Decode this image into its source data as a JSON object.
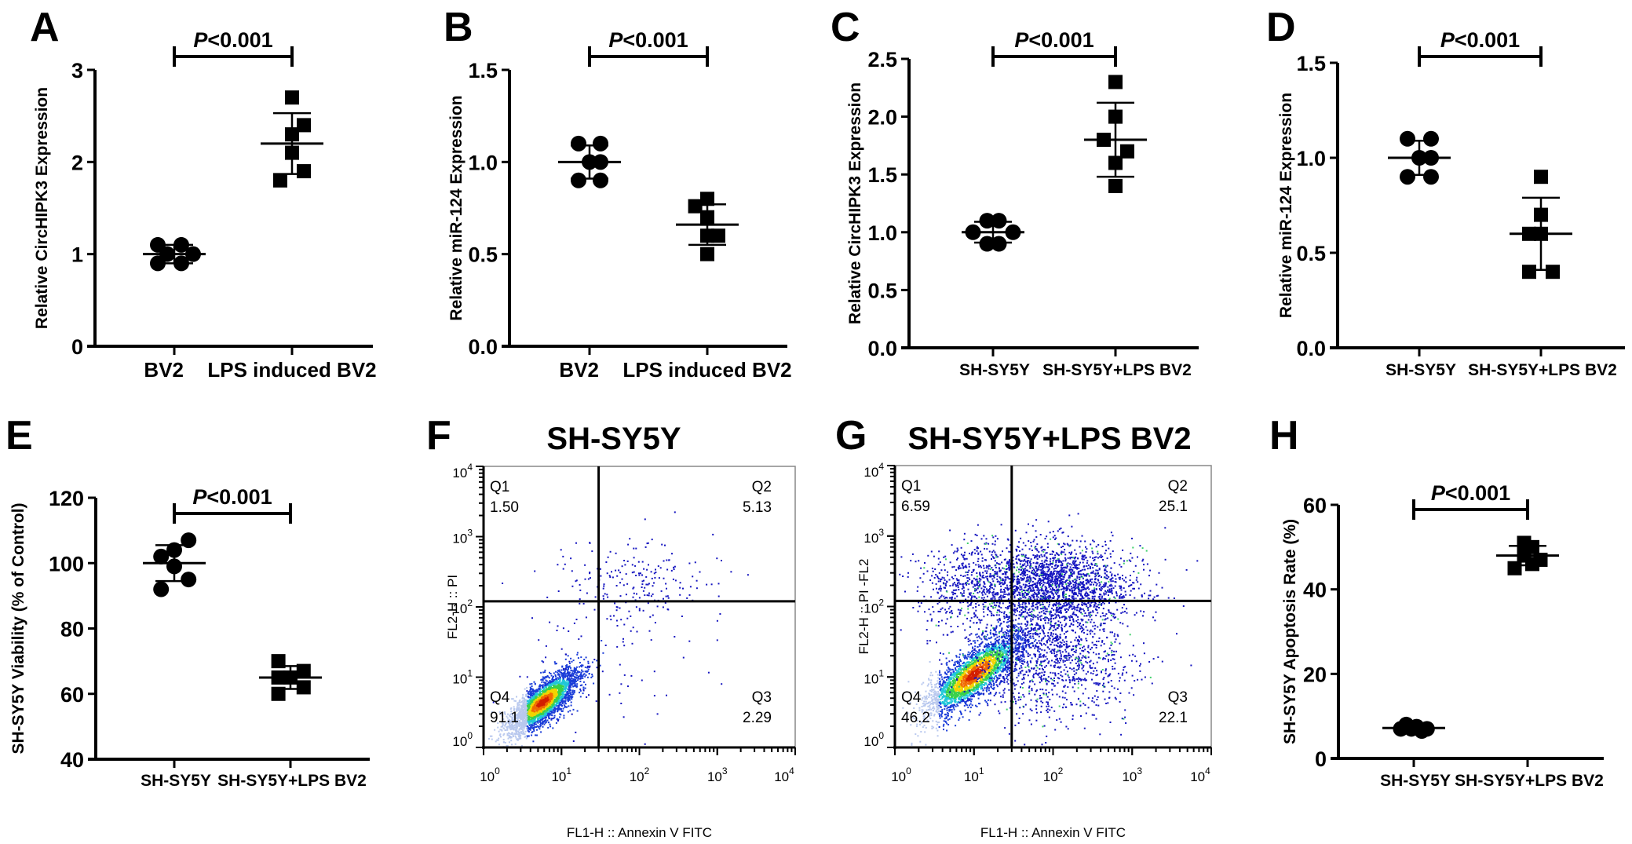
{
  "figure": {
    "colors": {
      "ink": "#000000",
      "background": "#ffffff",
      "box": "#888888"
    }
  },
  "chart_data": [
    {
      "id": "A",
      "panel_label": "A",
      "type": "scatter",
      "subtype": "dot-plot with mean and SD",
      "title": "",
      "xlabel": "",
      "ylabel": "Relative CircHIPK3 Expression",
      "ylim": [
        0,
        3
      ],
      "yticks": [
        0,
        1,
        2,
        3
      ],
      "ytick_labels": [
        "0",
        "1",
        "2",
        "3"
      ],
      "categories": [
        "BV2",
        "LPS induced BV2"
      ],
      "significance": "P<0.001",
      "series": [
        {
          "name": "BV2",
          "marker": "circle",
          "values": [
            1.1,
            1.1,
            1.0,
            1.0,
            0.9,
            0.9
          ],
          "offsets": [
            -0.7,
            0.3,
            -0.3,
            0.8,
            -0.7,
            0.3
          ],
          "mean": 1.0,
          "sd": 0.1
        },
        {
          "name": "LPS induced BV2",
          "marker": "square",
          "values": [
            2.7,
            2.4,
            2.3,
            2.1,
            1.9,
            1.8
          ],
          "offsets": [
            0,
            0.5,
            0,
            0,
            0.5,
            -0.5
          ],
          "mean": 2.2,
          "sd": 0.33
        }
      ]
    },
    {
      "id": "B",
      "panel_label": "B",
      "type": "scatter",
      "subtype": "dot-plot with mean and SD",
      "title": "",
      "xlabel": "",
      "ylabel": "Relative miR-124 Expression",
      "ylim": [
        0,
        1.5
      ],
      "yticks": [
        0,
        0.5,
        1.0,
        1.5
      ],
      "ytick_labels": [
        "0.0",
        "0.5",
        "1.0",
        "1.5"
      ],
      "categories": [
        "BV2",
        "LPS induced BV2"
      ],
      "significance": "P<0.001",
      "series": [
        {
          "name": "BV2",
          "marker": "circle",
          "values": [
            1.1,
            1.1,
            1.0,
            1.0,
            0.9,
            0.9
          ],
          "offsets": [
            -0.5,
            0.5,
            0,
            0.5,
            -0.5,
            0.5
          ],
          "mean": 1.0,
          "sd": 0.09
        },
        {
          "name": "LPS induced BV2",
          "marker": "square",
          "values": [
            0.8,
            0.76,
            0.7,
            0.6,
            0.6,
            0.5
          ],
          "offsets": [
            0,
            -0.55,
            0,
            0,
            0.5,
            0
          ],
          "mean": 0.66,
          "sd": 0.11
        }
      ]
    },
    {
      "id": "C",
      "panel_label": "C",
      "type": "scatter",
      "subtype": "dot-plot with mean and SD",
      "title": "",
      "xlabel": "",
      "ylabel": "Relative CircHIPK3 Expression",
      "ylim": [
        0,
        2.5
      ],
      "yticks": [
        0,
        0.5,
        1.0,
        1.5,
        2.0,
        2.5
      ],
      "ytick_labels": [
        "0.0",
        "0.5",
        "1.0",
        "1.5",
        "2.0",
        "2.5"
      ],
      "categories": [
        "SH-SY5Y",
        "SH-SY5Y+LPS BV2"
      ],
      "significance": "P<0.001",
      "series": [
        {
          "name": "SH-SY5Y",
          "marker": "circle",
          "values": [
            1.1,
            1.1,
            1.0,
            1.0,
            0.9,
            0.9
          ],
          "offsets": [
            -0.25,
            0.25,
            -0.85,
            0.85,
            -0.25,
            0.25
          ],
          "mean": 1.0,
          "sd": 0.09
        },
        {
          "name": "SH-SY5Y+LPS BV2",
          "marker": "square",
          "values": [
            2.3,
            2.0,
            1.8,
            1.7,
            1.6,
            1.4
          ],
          "offsets": [
            0,
            0,
            -0.5,
            0.5,
            0,
            0
          ],
          "mean": 1.8,
          "sd": 0.32
        }
      ]
    },
    {
      "id": "D",
      "panel_label": "D",
      "type": "scatter",
      "subtype": "dot-plot with mean and SD",
      "title": "",
      "xlabel": "",
      "ylabel": "Relative miR-124 Expression",
      "ylim": [
        0,
        1.5
      ],
      "yticks": [
        0,
        0.5,
        1.0,
        1.5
      ],
      "ytick_labels": [
        "0.0",
        "0.5",
        "1.0",
        "1.5"
      ],
      "categories": [
        "SH-SY5Y",
        "SH-SY5Y+LPS BV2"
      ],
      "significance": "P<0.001",
      "series": [
        {
          "name": "SH-SY5Y",
          "marker": "circle",
          "values": [
            1.1,
            1.1,
            1.0,
            1.0,
            0.9,
            0.9
          ],
          "offsets": [
            -0.5,
            0.5,
            0,
            0.5,
            -0.5,
            0.5
          ],
          "mean": 1.0,
          "sd": 0.09
        },
        {
          "name": "SH-SY5Y+LPS BV2",
          "marker": "square",
          "values": [
            0.9,
            0.7,
            0.6,
            0.6,
            0.4,
            0.4
          ],
          "offsets": [
            0,
            0,
            -0.5,
            0,
            -0.5,
            0.5
          ],
          "mean": 0.6,
          "sd": 0.19
        }
      ]
    },
    {
      "id": "E",
      "panel_label": "E",
      "type": "scatter",
      "subtype": "dot-plot with mean and SD",
      "title": "",
      "xlabel": "",
      "ylabel": "SH-SY5Y Viability (% of Control)",
      "ylim": [
        40,
        120
      ],
      "yticks": [
        40,
        60,
        80,
        100,
        120
      ],
      "ytick_labels": [
        "40",
        "60",
        "80",
        "100",
        "120"
      ],
      "categories": [
        "SH-SY5Y",
        "SH-SY5Y+LPS BV2"
      ],
      "significance": "P<0.001",
      "series": [
        {
          "name": "SH-SY5Y",
          "marker": "circle",
          "values": [
            107,
            104,
            102,
            99,
            95,
            92
          ],
          "offsets": [
            0.65,
            0,
            -0.6,
            0,
            0.65,
            -0.6
          ],
          "mean": 100,
          "sd": 5.5
        },
        {
          "name": "SH-SY5Y+LPS BV2",
          "marker": "square",
          "values": [
            70,
            67,
            65,
            65,
            62,
            60
          ],
          "offsets": [
            -0.55,
            0.6,
            -0.55,
            0,
            0.6,
            -0.55
          ],
          "mean": 65,
          "sd": 3.5
        }
      ]
    },
    {
      "id": "F",
      "panel_label": "F",
      "type": "scatter",
      "subtype": "flow cytometry quadrant density plot",
      "title": "SH-SY5Y",
      "xlabel": "FL1-H :: Annexin V FITC",
      "ylabel": "FL2-H :: PI",
      "xscale": "log",
      "yscale": "log",
      "xlim": [
        1,
        10000
      ],
      "ylim": [
        1,
        10000
      ],
      "xtick_labels": [
        "10^0",
        "10^1",
        "10^2",
        "10^3",
        "10^4"
      ],
      "ytick_labels": [
        "10^0",
        "10^1",
        "10^2",
        "10^3",
        "10^4"
      ],
      "gates": {
        "x": 30,
        "y": 120
      },
      "quadrants": [
        {
          "name": "Q1",
          "percent": "1.50"
        },
        {
          "name": "Q2",
          "percent": "5.13"
        },
        {
          "name": "Q3",
          "percent": "2.29"
        },
        {
          "name": "Q4",
          "percent": "91.1"
        }
      ],
      "populations": [
        {
          "label": "live",
          "x_log": 0.75,
          "y_log": 0.65,
          "spread_x": 0.22,
          "spread_y": 0.22,
          "weight": 0.91,
          "hot": true
        },
        {
          "label": "late apoptotic",
          "x_log": 1.9,
          "y_log": 2.35,
          "spread_x": 0.45,
          "spread_y": 0.3,
          "weight": 0.06,
          "hot": false
        },
        {
          "label": "scatter",
          "x_log": 1.5,
          "y_log": 1.5,
          "spread_x": 0.6,
          "spread_y": 0.6,
          "weight": 0.03,
          "hot": false
        }
      ]
    },
    {
      "id": "G",
      "panel_label": "G",
      "type": "scatter",
      "subtype": "flow cytometry quadrant density plot",
      "title": "SH-SY5Y+LPS BV2",
      "xlabel": "FL1-H :: Annexin V FITC",
      "ylabel": "FL2-H :: PI -FL2",
      "xscale": "log",
      "yscale": "log",
      "xlim": [
        1,
        10000
      ],
      "ylim": [
        1,
        10000
      ],
      "xtick_labels": [
        "10^0",
        "10^1",
        "10^2",
        "10^3",
        "10^4"
      ],
      "ytick_labels": [
        "10^0",
        "10^1",
        "10^2",
        "10^3",
        "10^4"
      ],
      "gates": {
        "x": 30,
        "y": 120
      },
      "quadrants": [
        {
          "name": "Q1",
          "percent": "6.59"
        },
        {
          "name": "Q2",
          "percent": "25.1"
        },
        {
          "name": "Q3",
          "percent": "22.1"
        },
        {
          "name": "Q4",
          "percent": "46.2"
        }
      ],
      "populations": [
        {
          "label": "live",
          "x_log": 1.0,
          "y_log": 1.05,
          "spread_x": 0.3,
          "spread_y": 0.28,
          "weight": 0.42,
          "hot": true
        },
        {
          "label": "late apoptotic",
          "x_log": 2.0,
          "y_log": 2.35,
          "spread_x": 0.5,
          "spread_y": 0.28,
          "weight": 0.3,
          "hot": false
        },
        {
          "label": "early apoptotic",
          "x_log": 2.0,
          "y_log": 1.3,
          "spread_x": 0.5,
          "spread_y": 0.45,
          "weight": 0.2,
          "hot": false
        },
        {
          "label": "Q1 spread",
          "x_log": 0.95,
          "y_log": 2.3,
          "spread_x": 0.4,
          "spread_y": 0.3,
          "weight": 0.08,
          "hot": false
        }
      ]
    },
    {
      "id": "H",
      "panel_label": "H",
      "type": "scatter",
      "subtype": "dot-plot with mean and SD",
      "title": "",
      "xlabel": "",
      "ylabel": "SH-SY5Y Apoptosis Rate (%)",
      "ylim": [
        0,
        60
      ],
      "yticks": [
        0,
        20,
        40,
        60
      ],
      "ytick_labels": [
        "0",
        "20",
        "40",
        "60"
      ],
      "categories": [
        "SH-SY5Y",
        "SH-SY5Y+LPS BV2"
      ],
      "significance": "P<0.001",
      "series": [
        {
          "name": "SH-SY5Y",
          "marker": "circle",
          "values": [
            7,
            8,
            7,
            7.5,
            6.5,
            7
          ],
          "offsets": [
            -0.55,
            -0.32,
            -0.1,
            0.12,
            0.34,
            0.56
          ],
          "mean": 7.2,
          "sd": 0.5
        },
        {
          "name": "SH-SY5Y+LPS BV2",
          "marker": "square",
          "values": [
            51,
            50,
            48,
            47,
            46,
            45
          ],
          "offsets": [
            -0.15,
            0.2,
            -0.15,
            0.55,
            0.2,
            -0.55
          ],
          "mean": 48,
          "sd": 2.3
        }
      ]
    }
  ]
}
